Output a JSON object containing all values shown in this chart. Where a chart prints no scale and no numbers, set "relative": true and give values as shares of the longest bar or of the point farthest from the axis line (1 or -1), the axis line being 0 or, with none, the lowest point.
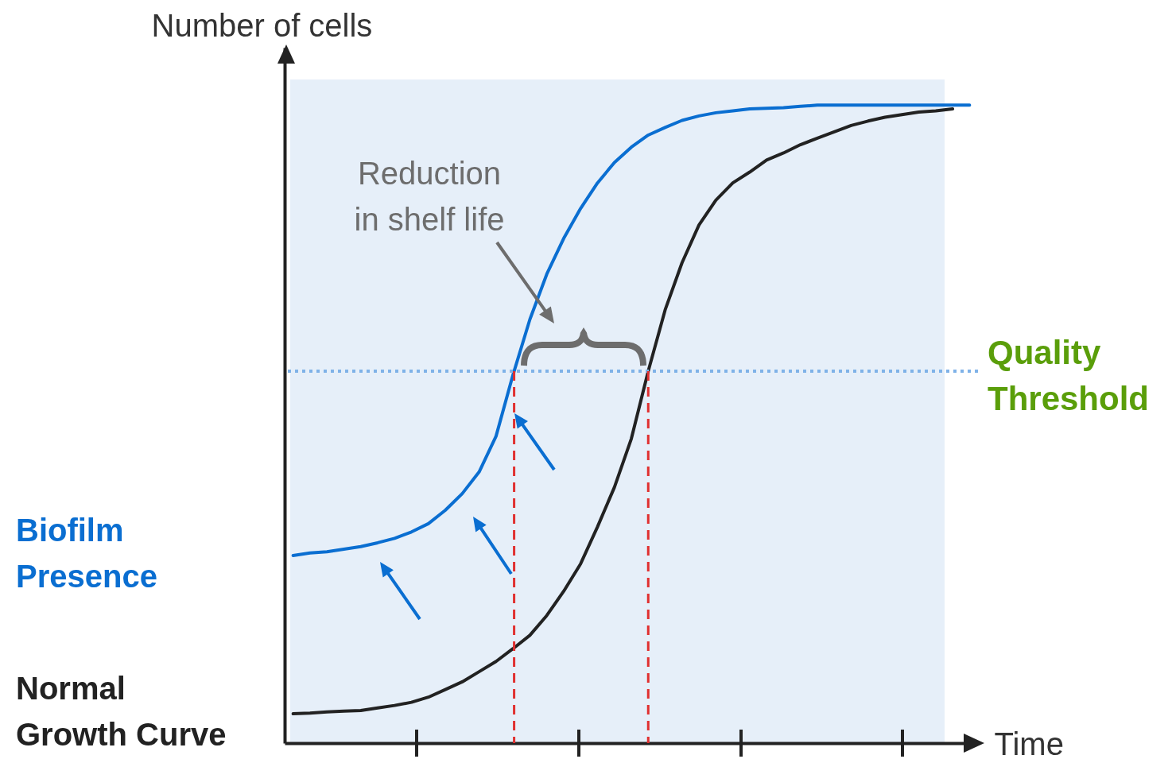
{
  "chart_data": {
    "type": "line",
    "relative": true,
    "xlabel": "Time",
    "ylabel": "Number of cells",
    "grid": false,
    "categories": [
      null,
      null,
      null,
      null,
      null,
      null,
      null,
      null,
      null,
      null,
      null,
      null,
      null,
      null,
      null,
      null,
      null,
      null,
      null,
      null,
      null,
      null,
      null,
      null,
      null,
      null,
      null,
      null,
      null,
      null,
      null,
      null,
      null,
      null,
      null,
      null,
      null,
      null,
      null,
      null,
      null
    ],
    "series": [
      {
        "name": "Biofilm Presence",
        "color": "#0a6ed1",
        "values": [
          0.294,
          0.298,
          0.3,
          0.304,
          0.308,
          0.314,
          0.321,
          0.331,
          0.344,
          0.365,
          0.391,
          0.425,
          0.481,
          0.577,
          0.664,
          0.735,
          0.791,
          0.838,
          0.878,
          0.91,
          0.934,
          0.953,
          0.965,
          0.976,
          0.983,
          0.988,
          0.991,
          0.994,
          0.995,
          0.996,
          0.998,
          1,
          1,
          1,
          1,
          1,
          1,
          1,
          1,
          1,
          1
        ]
      },
      {
        "name": "Normal Growth Curve",
        "color": "#222222",
        "values": [
          0.046,
          0.047,
          0.049,
          0.05,
          0.051,
          0.055,
          0.059,
          0.064,
          0.072,
          0.084,
          0.096,
          0.112,
          0.128,
          0.148,
          0.169,
          0.2,
          0.238,
          0.281,
          0.339,
          0.401,
          0.477,
          0.583,
          0.679,
          0.753,
          0.812,
          0.851,
          0.878,
          0.895,
          0.914,
          0.925,
          0.938,
          0.948,
          0.958,
          0.968,
          0.975,
          0.981,
          0.985,
          0.989,
          0.991,
          0.994,
          null
        ]
      }
    ],
    "ref_lines": [
      {
        "axis": "y",
        "value": 0.583,
        "label": "Quality Threshold",
        "color": "#7fb2e8",
        "line_style": "dotted"
      }
    ],
    "annotations": [
      "Reduction in shelf life"
    ]
  }
}
